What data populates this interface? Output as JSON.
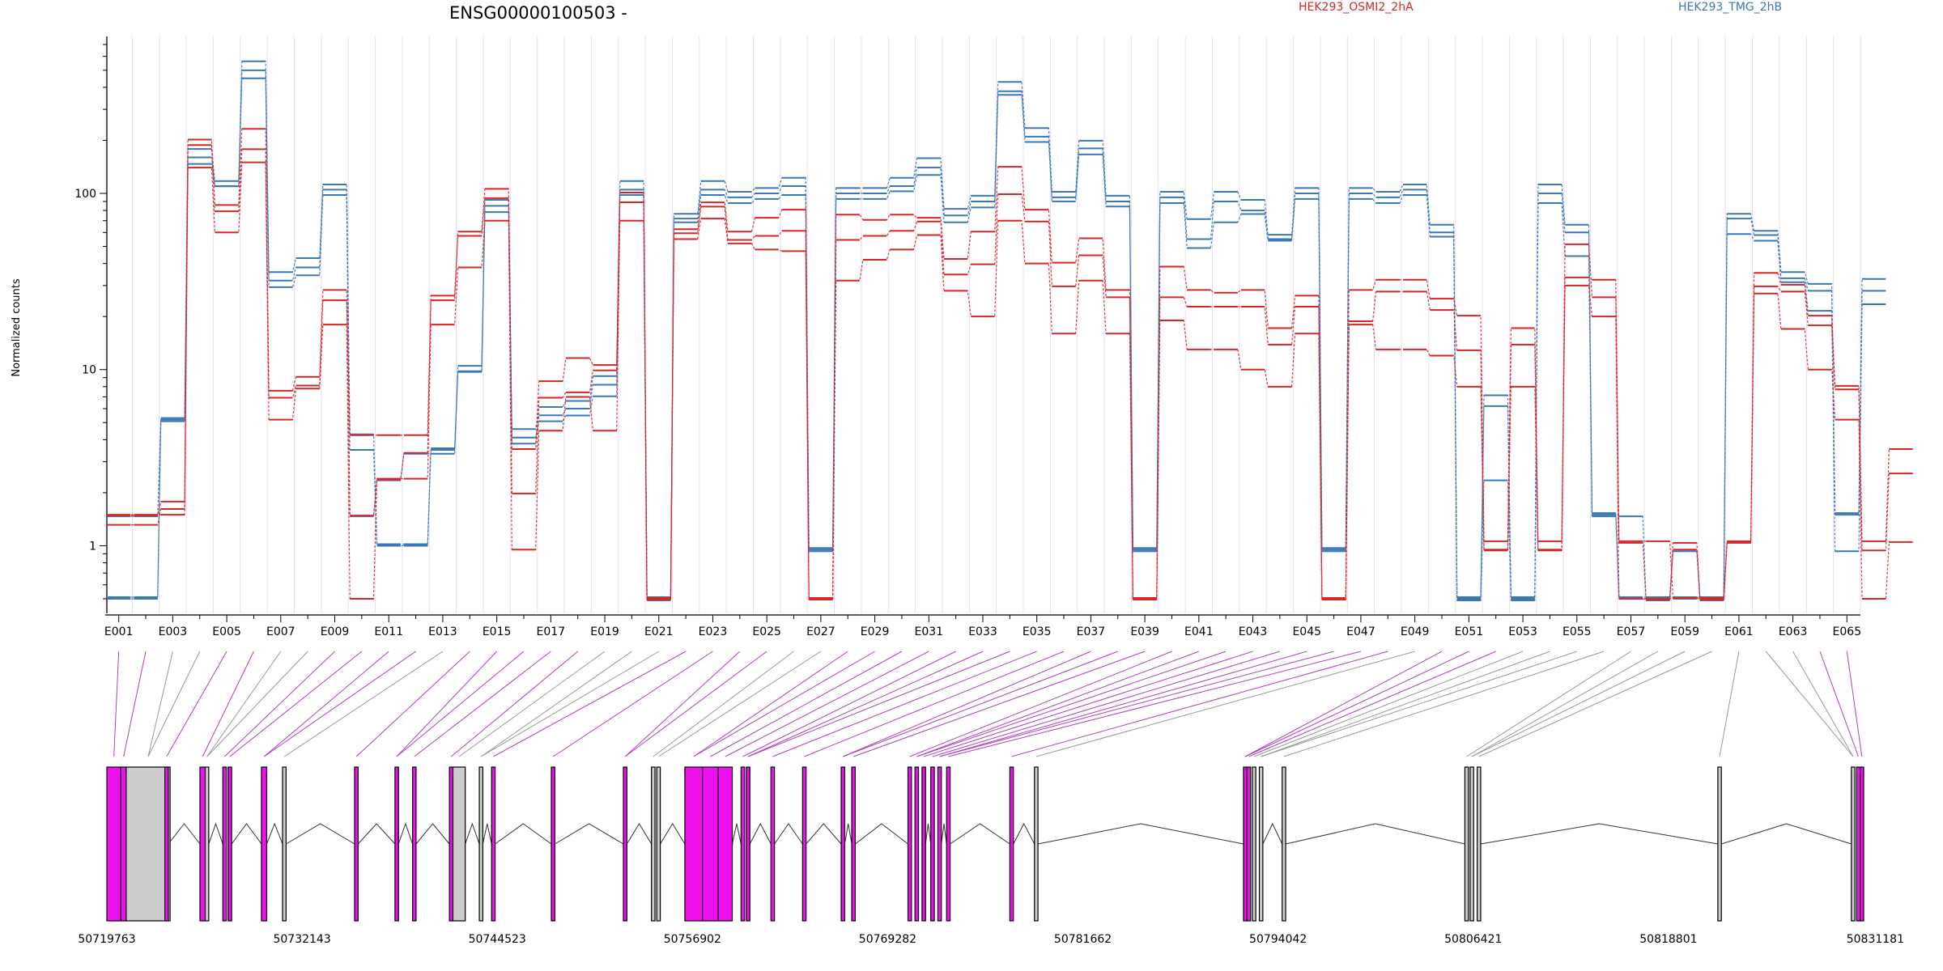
{
  "chart_data": {
    "type": "line",
    "title": "ENSG00000100503 -",
    "ylabel": "Normalized counts",
    "yscale": "log",
    "ylim": [
      0.5,
      700
    ],
    "y_ticks": [
      1,
      10,
      100
    ],
    "y_tick_labels": [
      "1",
      "10",
      "100"
    ],
    "legend": [
      {
        "label": "HEK293_OSMI2_2hA",
        "color": "#d62728"
      },
      {
        "label": "HEK293_TMG_2hB",
        "color": "#3a78b5"
      }
    ],
    "exon_labels": [
      "E001",
      "E003",
      "E005",
      "E007",
      "E009",
      "E011",
      "E013",
      "E015",
      "E017",
      "E019",
      "E021",
      "E023",
      "E025",
      "E027",
      "E029",
      "E031",
      "E033",
      "E035",
      "E037",
      "E039",
      "E041",
      "E043",
      "E045",
      "E047",
      "E049",
      "E051",
      "E053",
      "E055",
      "E057",
      "E059",
      "E061",
      "E063",
      "E065"
    ],
    "genomic_ticks": [
      "50719763",
      "50732143",
      "50744523",
      "50756902",
      "50769282",
      "50781662",
      "50794042",
      "50806421",
      "50818801",
      "50831181"
    ],
    "series": [
      {
        "group": "HEK293_TMG_2hB",
        "values": [
          0.5,
          0.5,
          5.2,
          175,
          115,
          550,
          35,
          42,
          110,
          4.2,
          1,
          1,
          3.5,
          9.5,
          90,
          4.5,
          6,
          6.5,
          9,
          115,
          0.5,
          75,
          115,
          100,
          105,
          120,
          0.95,
          105,
          105,
          120,
          155,
          80,
          95,
          420,
          230,
          100,
          195,
          95,
          0.95,
          100,
          70,
          100,
          90,
          57,
          105,
          0.95,
          105,
          100,
          110,
          65,
          0.5,
          7,
          0.5,
          110,
          65,
          1.5,
          0.5,
          0.5,
          0.5,
          0.5,
          75,
          60,
          35,
          30,
          1.5,
          32
        ]
      },
      {
        "group": "HEK293_TMG_2hB",
        "values": [
          0.5,
          0.5,
          5.2,
          160,
          110,
          500,
          32,
          38,
          105,
          3.5,
          1,
          1,
          3.5,
          10.5,
          85,
          3.8,
          5.5,
          6,
          8.2,
          105,
          0.5,
          72,
          105,
          95,
          100,
          110,
          0.95,
          100,
          100,
          110,
          140,
          75,
          90,
          380,
          210,
          95,
          180,
          90,
          0.95,
          95,
          55,
          90,
          80,
          55,
          100,
          0.95,
          100,
          95,
          105,
          60,
          0.5,
          6.2,
          0.5,
          100,
          60,
          1.5,
          0.5,
          0.5,
          0.5,
          0.5,
          72,
          58,
          33,
          28,
          1.5,
          28
        ]
      },
      {
        "group": "HEK293_TMG_2hB",
        "values": [
          1.5,
          1.5,
          5.2,
          150,
          112,
          460,
          30,
          35,
          100,
          1.5,
          2.4,
          3.4,
          3.4,
          10,
          80,
          4.2,
          5.2,
          5.6,
          7.2,
          100,
          0.5,
          70,
          100,
          90,
          95,
          100,
          0.95,
          95,
          95,
          105,
          130,
          70,
          85,
          370,
          200,
          92,
          170,
          86,
          0.95,
          90,
          50,
          70,
          78,
          55,
          95,
          0.95,
          95,
          90,
          100,
          58,
          0.5,
          2.4,
          0.5,
          90,
          45,
          1.5,
          1.5,
          0.5,
          0.95,
          0.5,
          60,
          55,
          32,
          22,
          0.95,
          24
        ]
      },
      {
        "group": "HEK293_OSMI2_2hA",
        "values": [
          1.3,
          1.3,
          1.6,
          200,
          85,
          230,
          7.5,
          9,
          28,
          4.2,
          4.2,
          4.2,
          26,
          60,
          105,
          3.5,
          8.5,
          11.5,
          10.5,
          100,
          0.5,
          62,
          88,
          60,
          72,
          80,
          0.5,
          75,
          70,
          75,
          72,
          42,
          60,
          140,
          80,
          40,
          55,
          28,
          0.5,
          38,
          28,
          27,
          28,
          17,
          26,
          0.5,
          28,
          32,
          32,
          25,
          20,
          1.05,
          17,
          1.05,
          33,
          32,
          1.05,
          1.05,
          0.5,
          0.5,
          1.05,
          35,
          30,
          20,
          8,
          1.05,
          3.5
        ]
      },
      {
        "group": "HEK293_OSMI2_2hA",
        "values": [
          1.5,
          1.5,
          1.8,
          190,
          80,
          180,
          7,
          8.2,
          25,
          1.5,
          2.4,
          3.4,
          25,
          58,
          95,
          2,
          7,
          7.5,
          10,
          90,
          0.5,
          60,
          85,
          55,
          58,
          62,
          0.5,
          55,
          58,
          62,
          70,
          35,
          40,
          100,
          70,
          30,
          45,
          26,
          0.5,
          26,
          23,
          23,
          23,
          14,
          23,
          0.5,
          19,
          28,
          28,
          22,
          13,
          0.95,
          14,
          0.95,
          52,
          26,
          1.05,
          0.5,
          1.05,
          0.5,
          1.05,
          30,
          28,
          18,
          7.8,
          0.95,
          2.6
        ]
      },
      {
        "group": "HEK293_OSMI2_2hA",
        "values": [
          1.5,
          1.5,
          1.5,
          140,
          60,
          150,
          5.2,
          7.8,
          18,
          0.5,
          2.4,
          2.4,
          18,
          38,
          70,
          0.95,
          4.5,
          7,
          4.5,
          70,
          0.5,
          55,
          72,
          52,
          48,
          47,
          0.5,
          32,
          42,
          48,
          58,
          28,
          20,
          70,
          40,
          16,
          32,
          16,
          0.5,
          19,
          13,
          13,
          10,
          8,
          16,
          0.5,
          18,
          13,
          13,
          12,
          8,
          0.95,
          8,
          0.95,
          30,
          20,
          0.5,
          0.5,
          0.95,
          0.5,
          1.05,
          27,
          17,
          10,
          5.2,
          0.5,
          1.05
        ]
      }
    ],
    "colors": {
      "osmi": "#d62728",
      "tmg": "#3a78b5",
      "exon_highlight": "#ee11ee",
      "exon_plain": "#cccccc",
      "link_highlight": "#b040c0",
      "link_plain": "#999999"
    }
  },
  "gene_model": {
    "blocks": [
      {
        "start": 0,
        "end": 0.008,
        "hl": true
      },
      {
        "start": 0.008,
        "end": 0.011,
        "hl": true
      },
      {
        "start": 0.011,
        "end": 0.036,
        "hl": false
      },
      {
        "start": 0.033,
        "end": 0.035,
        "hl": true
      },
      {
        "start": 0.053,
        "end": 0.056,
        "hl": true
      },
      {
        "start": 0.056,
        "end": 0.058,
        "hl": false
      },
      {
        "start": 0.066,
        "end": 0.068,
        "hl": true
      },
      {
        "start": 0.069,
        "end": 0.071,
        "hl": true
      },
      {
        "start": 0.088,
        "end": 0.091,
        "hl": true
      },
      {
        "start": 0.1,
        "end": 0.102,
        "hl": false
      },
      {
        "start": 0.141,
        "end": 0.143,
        "hl": true
      },
      {
        "start": 0.164,
        "end": 0.166,
        "hl": true
      },
      {
        "start": 0.174,
        "end": 0.176,
        "hl": true
      },
      {
        "start": 0.195,
        "end": 0.197,
        "hl": true
      },
      {
        "start": 0.197,
        "end": 0.204,
        "hl": false
      },
      {
        "start": 0.212,
        "end": 0.214,
        "hl": false
      },
      {
        "start": 0.219,
        "end": 0.221,
        "hl": true
      },
      {
        "start": 0.253,
        "end": 0.255,
        "hl": true
      },
      {
        "start": 0.294,
        "end": 0.296,
        "hl": true
      },
      {
        "start": 0.31,
        "end": 0.312,
        "hl": false
      },
      {
        "start": 0.313,
        "end": 0.315,
        "hl": false
      },
      {
        "start": 0.329,
        "end": 0.339,
        "hl": true
      },
      {
        "start": 0.339,
        "end": 0.348,
        "hl": true
      },
      {
        "start": 0.348,
        "end": 0.356,
        "hl": true
      },
      {
        "start": 0.361,
        "end": 0.363,
        "hl": true
      },
      {
        "start": 0.364,
        "end": 0.366,
        "hl": true
      },
      {
        "start": 0.378,
        "end": 0.38,
        "hl": true
      },
      {
        "start": 0.396,
        "end": 0.398,
        "hl": true
      },
      {
        "start": 0.418,
        "end": 0.42,
        "hl": true
      },
      {
        "start": 0.424,
        "end": 0.426,
        "hl": true
      },
      {
        "start": 0.456,
        "end": 0.458,
        "hl": true
      },
      {
        "start": 0.46,
        "end": 0.462,
        "hl": true
      },
      {
        "start": 0.464,
        "end": 0.466,
        "hl": true
      },
      {
        "start": 0.469,
        "end": 0.471,
        "hl": true
      },
      {
        "start": 0.473,
        "end": 0.475,
        "hl": true
      },
      {
        "start": 0.478,
        "end": 0.48,
        "hl": true
      },
      {
        "start": 0.514,
        "end": 0.516,
        "hl": true
      },
      {
        "start": 0.528,
        "end": 0.53,
        "hl": false
      },
      {
        "start": 0.647,
        "end": 0.649,
        "hl": true
      },
      {
        "start": 0.649,
        "end": 0.651,
        "hl": true
      },
      {
        "start": 0.652,
        "end": 0.654,
        "hl": false
      },
      {
        "start": 0.656,
        "end": 0.658,
        "hl": false
      },
      {
        "start": 0.669,
        "end": 0.671,
        "hl": false
      },
      {
        "start": 0.773,
        "end": 0.775,
        "hl": false
      },
      {
        "start": 0.776,
        "end": 0.778,
        "hl": false
      },
      {
        "start": 0.78,
        "end": 0.782,
        "hl": false
      },
      {
        "start": 0.917,
        "end": 0.919,
        "hl": false
      },
      {
        "start": 0.993,
        "end": 0.995,
        "hl": false
      },
      {
        "start": 0.996,
        "end": 0.998,
        "hl": true
      },
      {
        "start": 0.998,
        "end": 1.0,
        "hl": true
      }
    ]
  }
}
